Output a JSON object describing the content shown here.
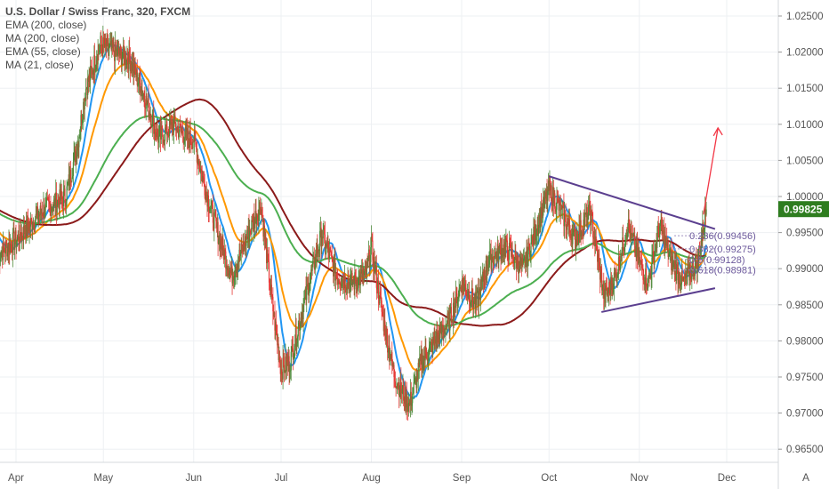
{
  "legend": {
    "title": "U.S. Dollar / Swiss Franc, 320, FXCM",
    "items": [
      {
        "label": "EMA (200, close)",
        "color": "#4caf50"
      },
      {
        "label": "MA (200, close)",
        "color": "#8b1a1a"
      },
      {
        "label": "EMA (55, close)",
        "color": "#ff9800"
      },
      {
        "label": "MA (21, close)",
        "color": "#2196f3"
      }
    ]
  },
  "auto_label": "A",
  "chart_data": {
    "type": "candlestick",
    "title": "U.S. Dollar / Swiss Franc, 320, FXCM",
    "ylim": [
      0.963,
      1.0265
    ],
    "yticks": [
      "1.02500",
      "1.02000",
      "1.01500",
      "1.01000",
      "1.00500",
      "1.00000",
      "0.99500",
      "0.99000",
      "0.98500",
      "0.98000",
      "0.97500",
      "0.97000",
      "0.96500"
    ],
    "xticks": [
      {
        "label": "Apr",
        "day": 0
      },
      {
        "label": "May",
        "day": 30
      },
      {
        "label": "Jun",
        "day": 61
      },
      {
        "label": "Jul",
        "day": 91
      },
      {
        "label": "Aug",
        "day": 122
      },
      {
        "label": "Sep",
        "day": 153
      },
      {
        "label": "Oct",
        "day": 183
      },
      {
        "label": "Nov",
        "day": 214
      },
      {
        "label": "Dec",
        "day": 244
      }
    ],
    "price_path": [
      [
        -6,
        0.992
      ],
      [
        0,
        0.994
      ],
      [
        9,
        0.998
      ],
      [
        17,
        1.0
      ],
      [
        21,
        1.007
      ],
      [
        24,
        1.015
      ],
      [
        29,
        1.021
      ],
      [
        34,
        1.02
      ],
      [
        39,
        1.019
      ],
      [
        44,
        1.014
      ],
      [
        49,
        1.008
      ],
      [
        54,
        1.01
      ],
      [
        59,
        1.008
      ],
      [
        61,
        1.008
      ],
      [
        65,
        1.001
      ],
      [
        70,
        0.994
      ],
      [
        74,
        0.989
      ],
      [
        78,
        0.993
      ],
      [
        84,
        0.999
      ],
      [
        88,
        0.985
      ],
      [
        91,
        0.976
      ],
      [
        94,
        0.977
      ],
      [
        100,
        0.987
      ],
      [
        105,
        0.995
      ],
      [
        110,
        0.989
      ],
      [
        115,
        0.988
      ],
      [
        120,
        0.989
      ],
      [
        122,
        0.993
      ],
      [
        126,
        0.983
      ],
      [
        130,
        0.975
      ],
      [
        135,
        0.971
      ],
      [
        139,
        0.977
      ],
      [
        144,
        0.98
      ],
      [
        149,
        0.983
      ],
      [
        153,
        0.988
      ],
      [
        158,
        0.985
      ],
      [
        162,
        0.991
      ],
      [
        168,
        0.993
      ],
      [
        174,
        0.99
      ],
      [
        179,
        0.996
      ],
      [
        183,
        1.001
      ],
      [
        187,
        0.998
      ],
      [
        192,
        0.994
      ],
      [
        197,
        0.998
      ],
      [
        202,
        0.986
      ],
      [
        206,
        0.989
      ],
      [
        210,
        0.996
      ],
      [
        214,
        0.991
      ],
      [
        217,
        0.988
      ],
      [
        221,
        0.996
      ],
      [
        225,
        0.991
      ],
      [
        229,
        0.988
      ],
      [
        234,
        0.991
      ],
      [
        237,
        0.9982
      ]
    ],
    "current_price": {
      "label": "0.99825",
      "value": 0.99825,
      "color": "#2e7d1f"
    },
    "trendlines": [
      {
        "name": "upper",
        "from": [
          183,
          1.0028
        ],
        "to": [
          240,
          0.9955
        ],
        "color": "#5b3f8f"
      },
      {
        "name": "lower",
        "from": [
          201,
          0.984
        ],
        "to": [
          240,
          0.9873
        ],
        "color": "#5b3f8f"
      }
    ],
    "projection_arrow": {
      "from": [
        236,
        0.9975
      ],
      "to": [
        241,
        1.0095
      ],
      "color": "#f23645"
    },
    "fib_levels": [
      {
        "label": "0.236(0.99456)",
        "value": 0.99456
      },
      {
        "label": "0.382(0.99275)",
        "value": 0.99275
      },
      {
        "label": "0.5(0.99128)",
        "value": 0.99128
      },
      {
        "label": "0.618(0.98981)",
        "value": 0.98981
      }
    ],
    "indicators": [
      {
        "name": "MA 21",
        "period": 21,
        "type": "sma",
        "color": "#2196f3"
      },
      {
        "name": "EMA 55",
        "period": 55,
        "type": "ema",
        "color": "#ff9800"
      },
      {
        "name": "MA 200",
        "period": 200,
        "type": "sma",
        "color": "#8b1a1a"
      },
      {
        "name": "EMA 200",
        "period": 200,
        "type": "ema",
        "color": "#4caf50"
      }
    ],
    "up_color": "#4e8a3a",
    "down_color": "#e53935"
  }
}
